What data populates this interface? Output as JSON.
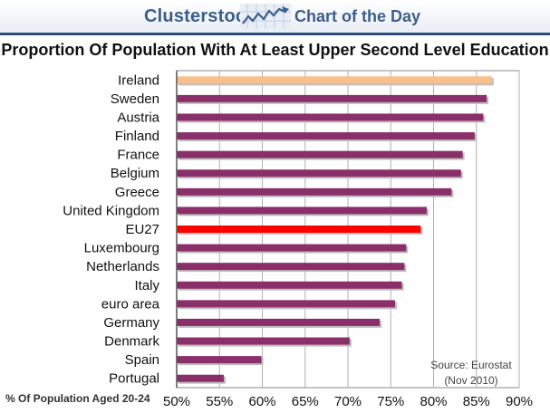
{
  "header": {
    "brand": "Clusterstock",
    "subtitle": "Chart of the Day"
  },
  "chart_data": {
    "type": "bar",
    "orientation": "horizontal",
    "title": "Proportion Of Population With At Least Upper Second Level Education",
    "xlabel": "% Of Population Aged 20-24",
    "ylabel": "",
    "xlim": [
      50,
      90
    ],
    "x_ticks": [
      "50%",
      "55%",
      "60%",
      "65%",
      "70%",
      "75%",
      "80%",
      "85%",
      "90%"
    ],
    "grid": true,
    "categories": [
      "Ireland",
      "Sweden",
      "Austria",
      "Finland",
      "France",
      "Belgium",
      "Greece",
      "United Kingdom",
      "EU27",
      "Luxembourg",
      "Netherlands",
      "Italy",
      "euro area",
      "Germany",
      "Denmark",
      "Spain",
      "Portugal"
    ],
    "values": [
      86.8,
      86.2,
      85.8,
      84.8,
      83.4,
      83.2,
      82.1,
      79.2,
      78.5,
      76.8,
      76.6,
      76.3,
      75.5,
      73.7,
      70.2,
      59.9,
      55.5
    ],
    "colors": {
      "default": "#8b2f6a",
      "highlight_top": "#f8c08a",
      "highlight_eu27": "#ff0000"
    },
    "highlight": {
      "Ireland": "highlight_top",
      "EU27": "highlight_eu27"
    },
    "source": [
      "Source: Eurostat",
      "(Nov 2010)"
    ]
  }
}
